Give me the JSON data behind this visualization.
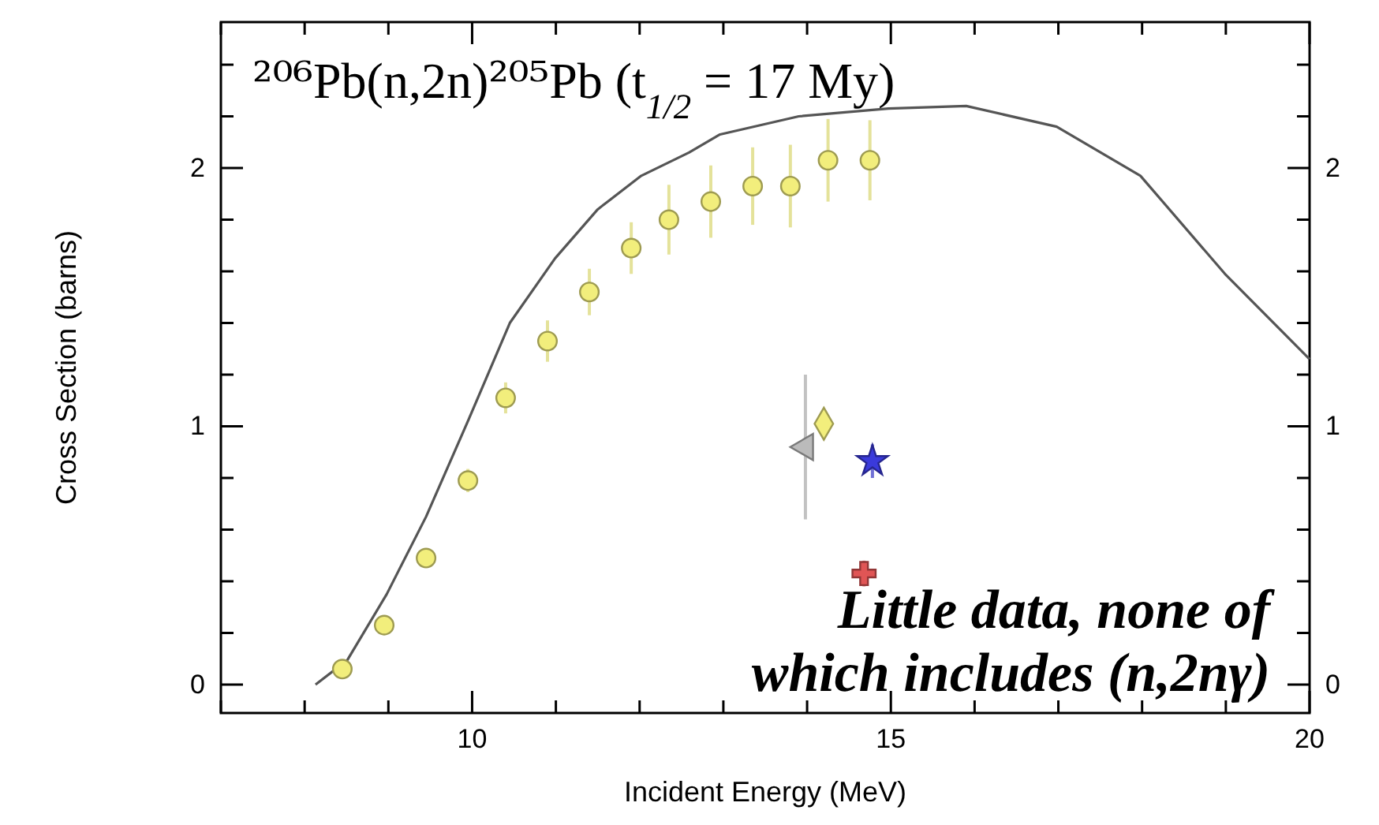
{
  "chart_data": {
    "type": "scatter",
    "title": "²⁰⁶Pb(n,2n)²⁰⁵Pb (t$_{1/2}$ = 17 My)",
    "xlabel": "Incident Energy (MeV)",
    "ylabel": "Cross Section (barns)",
    "xlim": [
      7,
      20
    ],
    "xticks": [
      {
        "value": 7,
        "label": null
      },
      {
        "value": 8,
        "label": null
      },
      {
        "value": 9,
        "label": null
      },
      10,
      {
        "value": 11,
        "label": null
      },
      {
        "value": 12,
        "label": null
      },
      {
        "value": 13,
        "label": null
      },
      {
        "value": 14,
        "label": null
      },
      15,
      {
        "value": 16,
        "label": null
      },
      {
        "value": 17,
        "label": null
      },
      {
        "value": 18,
        "label": null
      },
      {
        "value": 19,
        "label": null
      },
      20
    ],
    "ylim": [
      -0.11,
      2.565
    ],
    "yticks": [
      0,
      {
        "value": 0.2,
        "label": null
      },
      {
        "value": 0.4,
        "label": null
      },
      {
        "value": 0.6,
        "label": null
      },
      {
        "value": 0.8,
        "label": null
      },
      1,
      {
        "value": 1.2,
        "label": null
      },
      {
        "value": 1.4,
        "label": null
      },
      {
        "value": 1.6,
        "label": null
      },
      {
        "value": 1.8,
        "label": null
      },
      2,
      {
        "value": 2.2,
        "label": null
      },
      {
        "value": 2.4,
        "label": null
      }
    ],
    "y2lim": [
      -0.11,
      2.565
    ],
    "y2ticks": [
      0,
      {
        "value": 0.2,
        "label": null
      },
      {
        "value": 0.4,
        "label": null
      },
      {
        "value": 0.6,
        "label": null
      },
      {
        "value": 0.8,
        "label": null
      },
      1,
      {
        "value": 1.2,
        "label": null
      },
      {
        "value": 1.4,
        "label": null
      },
      {
        "value": 1.6,
        "label": null
      },
      {
        "value": 1.8,
        "label": null
      },
      2,
      {
        "value": 2.2,
        "label": null
      },
      {
        "value": 2.4,
        "label": null
      }
    ],
    "grid": false,
    "series": [
      {
        "type": "line",
        "color": "#555555",
        "marker": "none",
        "line_style": "solid",
        "x": [
          8.13,
          8.51,
          8.98,
          9.45,
          9.95,
          10.45,
          10.99,
          11.5,
          12.02,
          12.59,
          12.96,
          13.9,
          14.97,
          15.9,
          16.98,
          17.98,
          18.99,
          20
        ],
        "values": [
          0,
          0.095,
          0.35,
          0.65,
          1.02,
          1.4,
          1.65,
          1.84,
          1.97,
          2.06,
          2.13,
          2.2,
          2.23,
          2.24,
          2.16,
          1.97,
          1.59,
          1.26
        ]
      },
      {
        "color": "#f2ee7c",
        "marker": "circle",
        "x": [
          8.45,
          8.95,
          9.45,
          9.95,
          10.4,
          10.9,
          11.4,
          11.9,
          12.35,
          12.85,
          13.35,
          13.8,
          14.25,
          14.75
        ],
        "values": [
          0.06,
          0.23,
          0.49,
          0.79,
          1.11,
          1.33,
          1.52,
          1.69,
          1.8,
          1.87,
          1.93,
          1.93,
          2.03,
          2.03
        ],
        "errors": [
          0.02,
          0.02,
          0.02,
          0.045,
          0.06,
          0.08,
          0.09,
          0.1,
          0.135,
          0.14,
          0.15,
          0.16,
          0.16,
          0.155
        ]
      },
      {
        "color": "#f2ee7c",
        "marker": "diamond",
        "x": [
          14.2
        ],
        "values": [
          1.01
        ],
        "errors": [
          0.04
        ]
      },
      {
        "color": "#bbbbbb",
        "marker": "triangle",
        "x": [
          13.98
        ],
        "values": [
          0.92
        ],
        "errors": [
          0.28
        ]
      },
      {
        "color": "#3a3adb",
        "marker": "star",
        "x": [
          14.78
        ],
        "values": [
          0.865
        ],
        "errors": [
          0.065
        ]
      },
      {
        "color": "#e05555",
        "marker": "cross",
        "x": [
          14.68
        ],
        "values": [
          0.43
        ],
        "errors": [
          0.05
        ]
      }
    ],
    "annotations": [
      "Little data, none of\nwhich includes (n,2nγ)"
    ]
  }
}
